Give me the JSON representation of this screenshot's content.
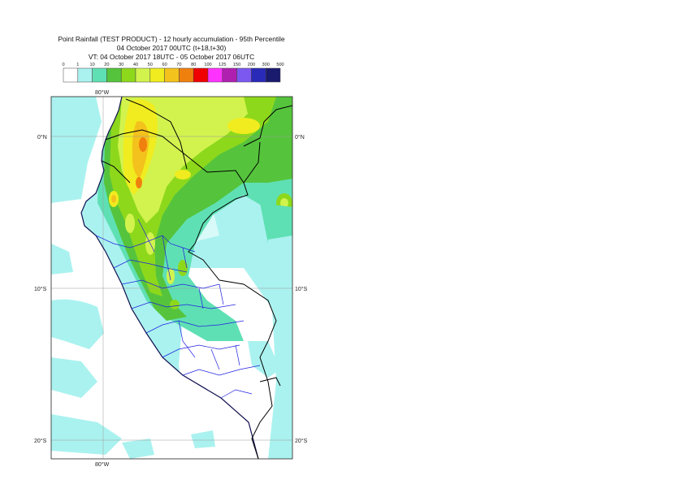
{
  "title": {
    "line1": "Point Rainfall (TEST PRODUCT) - 12 hourly accumulation - 95th Percentile",
    "line2": "04 October 2017 00UTC (t+18,t+30)",
    "line3": "VT: 04 October 2017 18UTC - 05 October 2017 06UTC"
  },
  "legend": {
    "thresholds": [
      "0",
      "1",
      "10",
      "20",
      "30",
      "40",
      "50",
      "60",
      "70",
      "80",
      "100",
      "125",
      "150",
      "200",
      "300",
      "500"
    ],
    "colors": [
      "#ffffff",
      "#aaf2ef",
      "#5fe0b4",
      "#55c43c",
      "#8ed81c",
      "#d2f34e",
      "#f0ec1f",
      "#f4c21c",
      "#f0800e",
      "#f00000",
      "#ff33ff",
      "#b020b0",
      "#7c58f0",
      "#2a2ab8",
      "#1a1a6e"
    ]
  },
  "map": {
    "lat_labels": [
      "0°N",
      "10°S",
      "20°S"
    ],
    "lon_labels": [
      "80°W"
    ]
  }
}
